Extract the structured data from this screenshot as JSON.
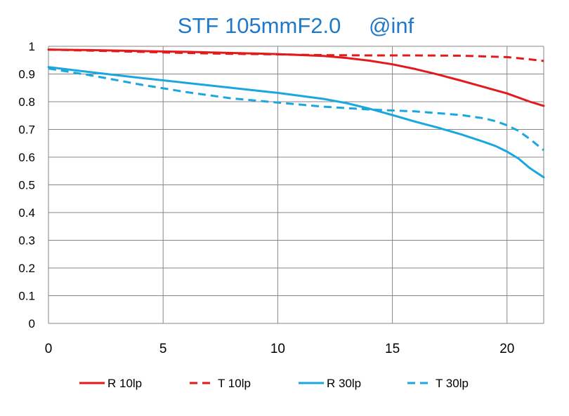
{
  "chart_data": {
    "type": "line",
    "title": "STF 105mmF2.0　 @inf",
    "xlabel": "",
    "ylabel": "",
    "xlim": [
      0,
      21.6
    ],
    "ylim": [
      0,
      1
    ],
    "x_ticks": [
      0,
      5,
      10,
      15,
      20
    ],
    "y_ticks": [
      0,
      0.1,
      0.2,
      0.3,
      0.4,
      0.5,
      0.6,
      0.7,
      0.8,
      0.9,
      1
    ],
    "grid": true,
    "legend_position": "bottom",
    "series": [
      {
        "name": "R 10lp",
        "color": "#e31a1c",
        "style": "solid",
        "x": [
          0,
          2,
          4,
          6,
          8,
          10,
          12,
          13,
          14,
          15,
          16,
          17,
          18,
          19,
          20,
          21,
          21.6
        ],
        "y": [
          0.988,
          0.986,
          0.983,
          0.98,
          0.976,
          0.972,
          0.965,
          0.958,
          0.948,
          0.935,
          0.918,
          0.898,
          0.876,
          0.853,
          0.83,
          0.8,
          0.785
        ]
      },
      {
        "name": "T 10lp",
        "color": "#e31a1c",
        "style": "dashed",
        "x": [
          0,
          2,
          4,
          6,
          8,
          10,
          12,
          14,
          16,
          18,
          20,
          21,
          21.6
        ],
        "y": [
          0.988,
          0.984,
          0.98,
          0.976,
          0.973,
          0.971,
          0.968,
          0.967,
          0.967,
          0.966,
          0.961,
          0.953,
          0.947
        ]
      },
      {
        "name": "R 30lp",
        "color": "#1aa7e0",
        "style": "solid",
        "x": [
          0,
          2,
          4,
          6,
          8,
          10,
          12,
          13,
          14,
          15,
          16,
          17,
          18,
          19,
          19.5,
          20,
          20.5,
          21,
          21.6
        ],
        "y": [
          0.925,
          0.905,
          0.886,
          0.868,
          0.85,
          0.832,
          0.81,
          0.795,
          0.775,
          0.752,
          0.728,
          0.706,
          0.682,
          0.655,
          0.64,
          0.62,
          0.595,
          0.56,
          0.527
        ]
      },
      {
        "name": "T 30lp",
        "color": "#1aa7e0",
        "style": "dashed",
        "x": [
          0,
          2,
          4,
          6,
          8,
          10,
          12,
          14,
          16,
          18,
          19,
          19.5,
          20,
          20.5,
          21,
          21.6
        ],
        "y": [
          0.92,
          0.893,
          0.862,
          0.835,
          0.812,
          0.797,
          0.782,
          0.772,
          0.765,
          0.752,
          0.74,
          0.73,
          0.715,
          0.695,
          0.665,
          0.625
        ]
      }
    ]
  }
}
